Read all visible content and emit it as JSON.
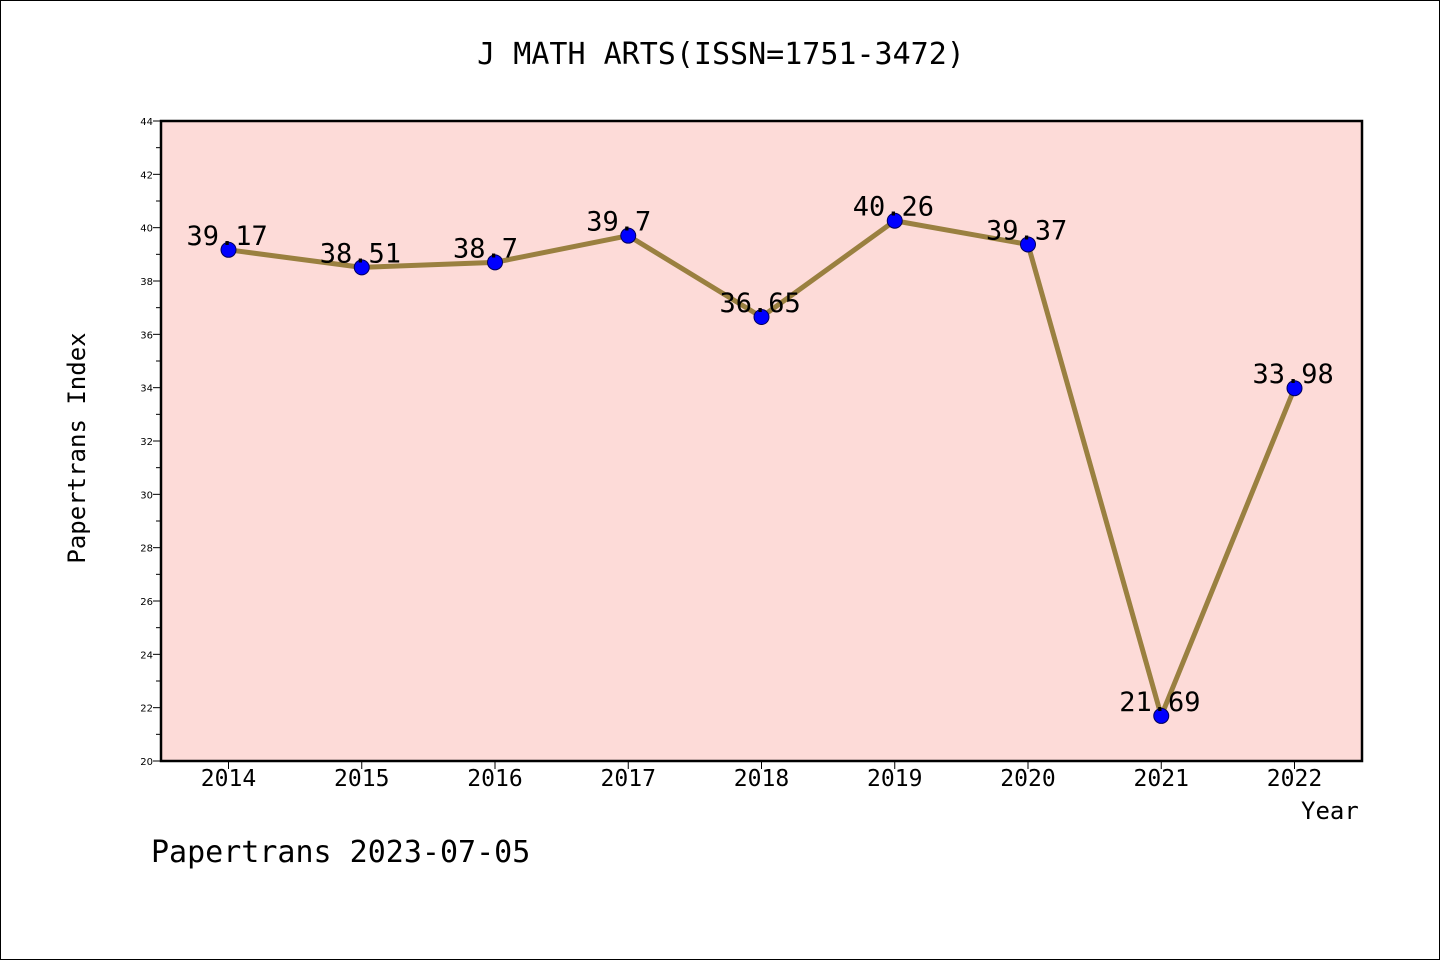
{
  "chart_data": {
    "type": "line",
    "title": "J MATH ARTS(ISSN=1751-3472)",
    "xlabel": "Year",
    "ylabel": "Papertrans Index",
    "categories": [
      "2014",
      "2015",
      "2016",
      "2017",
      "2018",
      "2019",
      "2020",
      "2021",
      "2022"
    ],
    "series": [
      {
        "values": [
          39.17,
          38.51,
          38.7,
          39.7,
          36.65,
          40.26,
          39.37,
          21.69,
          33.98
        ],
        "labels": [
          "39.17",
          "38.51",
          "38.7",
          "39.7",
          "36.65",
          "40.26",
          "39.37",
          "21.69",
          "33.98"
        ]
      }
    ],
    "ylim": [
      20,
      44
    ],
    "yticks": [
      "20",
      "22",
      "24",
      "26",
      "28",
      "30",
      "32",
      "34",
      "36",
      "38",
      "40",
      "42",
      "44"
    ],
    "grid": false,
    "colors": {
      "plot_bg": "#fddbd8",
      "line": "#9a8040",
      "marker": "#0000ff"
    }
  },
  "footer": {
    "text": "Papertrans 2023-07-05"
  }
}
